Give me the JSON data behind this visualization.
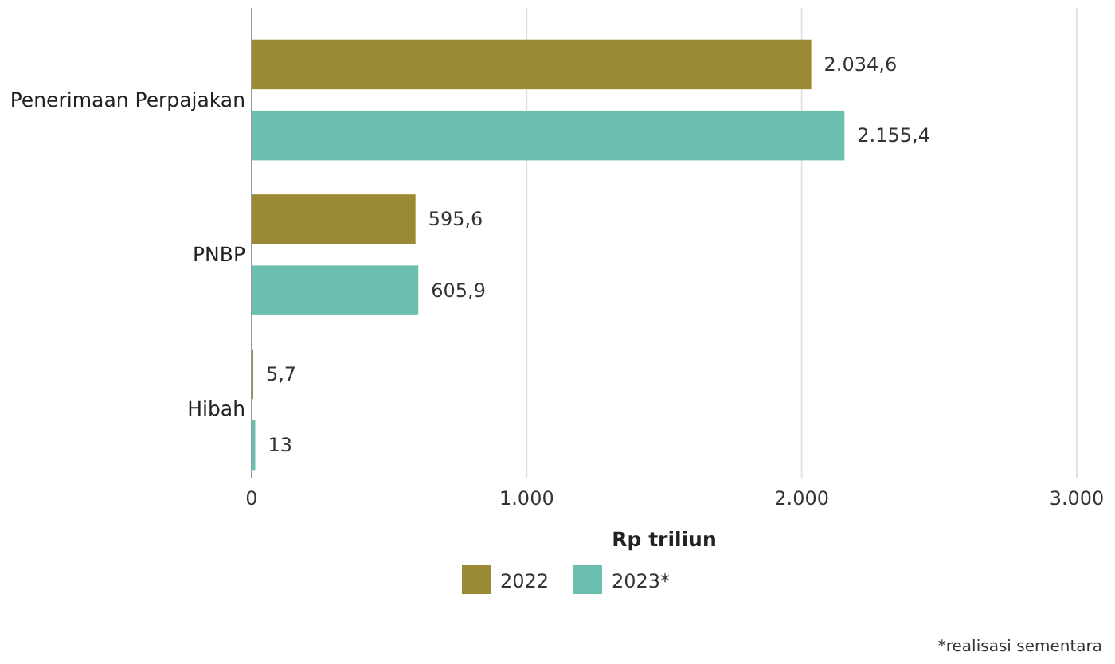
{
  "chart_data": {
    "type": "bar",
    "orientation": "horizontal",
    "xlabel": "Rp triliun",
    "categories": [
      "Penerimaan Perpajakan",
      "PNBP",
      "Hibah"
    ],
    "series": [
      {
        "name": "2022",
        "color": "#9a8a35",
        "values": [
          2034.6,
          595.6,
          5.7
        ],
        "value_labels": [
          "2.034,6",
          "595,6",
          "5,7"
        ]
      },
      {
        "name": "2023*",
        "color": "#6bbfae",
        "values": [
          2155.4,
          605.9,
          13
        ],
        "value_labels": [
          "2.155,4",
          "605,9",
          "13"
        ]
      }
    ],
    "xlim": [
      0,
      3000
    ],
    "xticks": [
      0,
      {
        "value": 1000,
        "label": "1.000"
      },
      {
        "value": 2000,
        "label": "2.000"
      },
      {
        "value": 3000,
        "label": "3.000"
      }
    ],
    "grid": "x",
    "legend": "bottom",
    "annotations": [
      "*realisasi sementara"
    ]
  }
}
